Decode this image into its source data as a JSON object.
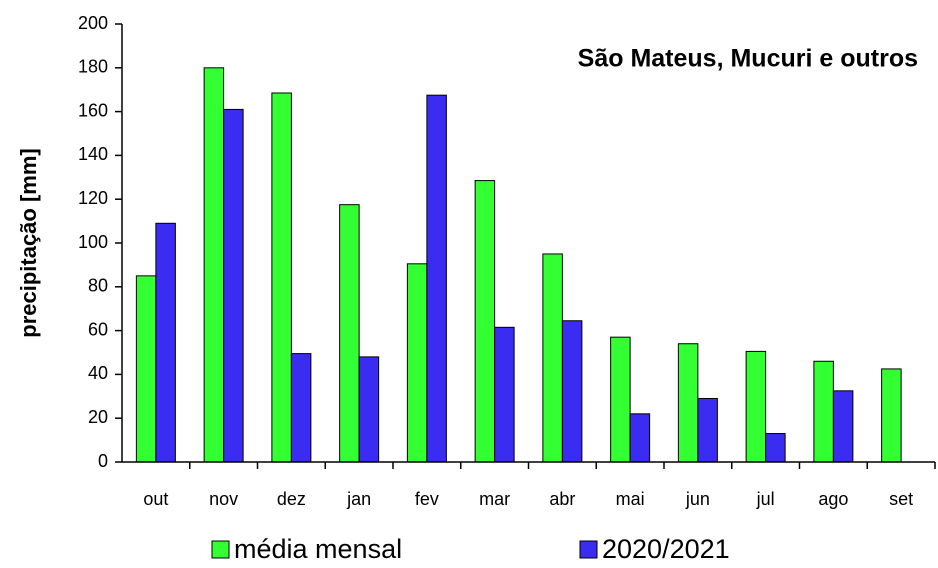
{
  "chart_data": {
    "type": "bar",
    "title": "São Mateus, Mucuri e outros",
    "y_label": "precipitação [mm]",
    "categories": [
      "out",
      "nov",
      "dez",
      "jan",
      "fev",
      "mar",
      "abr",
      "mai",
      "jun",
      "jul",
      "ago",
      "set"
    ],
    "series": [
      {
        "name": "média mensal",
        "color": "#33ff33",
        "values": [
          85,
          180,
          168.5,
          117.5,
          90.5,
          128.5,
          95,
          57,
          54,
          50.5,
          46,
          42.5
        ]
      },
      {
        "name": "2020/2021",
        "color": "#3a2cf0",
        "values": [
          109,
          161,
          49.5,
          48,
          167.5,
          61.5,
          64.5,
          22,
          29,
          13,
          32.5,
          null
        ]
      }
    ],
    "ylim": [
      0,
      200
    ],
    "yticks": [
      0,
      20,
      40,
      60,
      80,
      100,
      120,
      140,
      160,
      180,
      200
    ],
    "legend": "bottom"
  }
}
